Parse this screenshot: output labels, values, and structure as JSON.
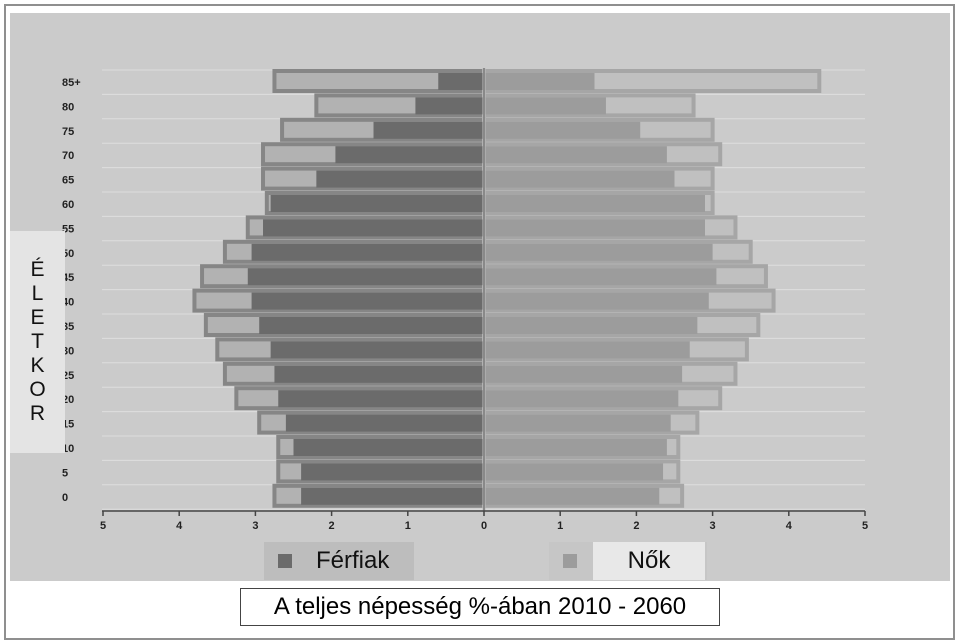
{
  "y_axis_label": [
    "É",
    "L",
    "E",
    "T",
    "K",
    "O",
    "R"
  ],
  "legend": {
    "men": {
      "label": "Férfiak",
      "color": "#6b6b6b"
    },
    "women": {
      "label": "Nők",
      "color": "#9c9c9c"
    }
  },
  "caption": "A teljes népesség %-ában 2010 - 2060",
  "chart_data": {
    "type": "bar",
    "orientation": "horizontal-pyramid",
    "categories": [
      "0",
      "5",
      "10",
      "15",
      "20",
      "25",
      "30",
      "35",
      "40",
      "45",
      "50",
      "55",
      "60",
      "65",
      "70",
      "75",
      "80",
      "85+"
    ],
    "xlim": [
      -5,
      5
    ],
    "x_ticks": [
      -5,
      -4,
      -3,
      -2,
      -1,
      0,
      1,
      2,
      3,
      4,
      5
    ],
    "x_tick_labels": [
      "5",
      "4",
      "3",
      "2",
      "1",
      "0",
      "1",
      "2",
      "3",
      "4",
      "5"
    ],
    "grid": true,
    "series": [
      {
        "name": "Férfiak",
        "year": 2010,
        "values": [
          2.4,
          2.4,
          2.5,
          2.6,
          2.7,
          2.75,
          2.8,
          2.95,
          3.05,
          3.1,
          3.05,
          2.9,
          2.8,
          2.2,
          1.95,
          1.45,
          0.9,
          0.6
        ]
      },
      {
        "name": "Férfiak",
        "year": 2060,
        "values": [
          2.75,
          2.7,
          2.7,
          2.95,
          3.25,
          3.4,
          3.5,
          3.65,
          3.8,
          3.7,
          3.4,
          3.1,
          2.85,
          2.9,
          2.9,
          2.65,
          2.2,
          2.75
        ]
      },
      {
        "name": "Nők",
        "year": 2010,
        "values": [
          2.3,
          2.35,
          2.4,
          2.45,
          2.55,
          2.6,
          2.7,
          2.8,
          2.95,
          3.05,
          3.0,
          2.9,
          2.9,
          2.5,
          2.4,
          2.05,
          1.6,
          1.45
        ]
      },
      {
        "name": "Nők",
        "year": 2060,
        "values": [
          2.6,
          2.55,
          2.55,
          2.8,
          3.1,
          3.3,
          3.45,
          3.6,
          3.8,
          3.7,
          3.5,
          3.3,
          3.0,
          3.0,
          3.1,
          3.0,
          2.75,
          4.4
        ]
      }
    ]
  }
}
